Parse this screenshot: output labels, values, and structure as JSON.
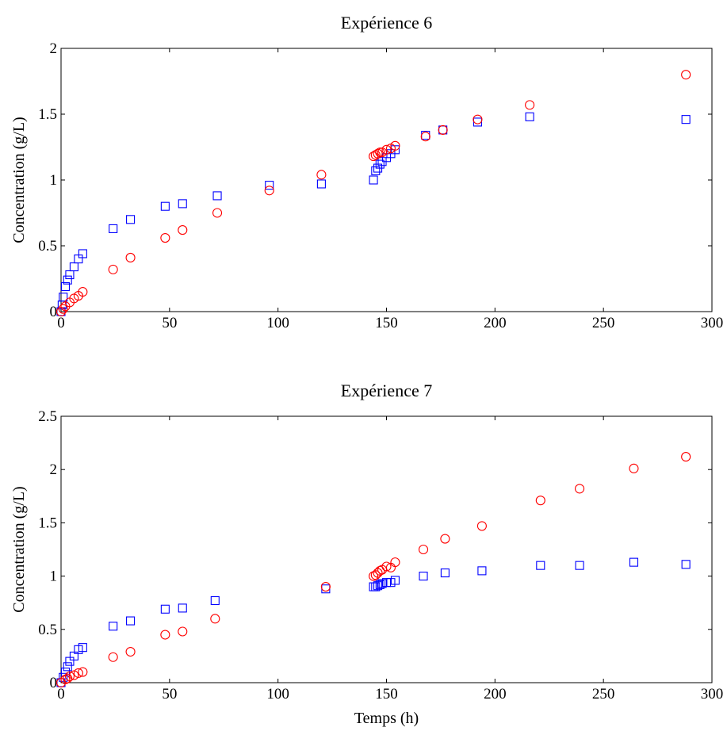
{
  "chart_data": [
    {
      "type": "scatter",
      "title": "Expérience 6",
      "xlabel": "",
      "ylabel": "Concentration (g/L)",
      "xlim": [
        0,
        300
      ],
      "ylim": [
        0,
        2
      ],
      "xticks": [
        "0",
        "50",
        "100",
        "150",
        "200",
        "250",
        "300"
      ],
      "yticks": [
        "0",
        "0.5",
        "1",
        "1.5",
        "2"
      ],
      "grid": false,
      "series": [
        {
          "marker": "square",
          "color": "#0000ff",
          "x": [
            0,
            0.5,
            1,
            2,
            3,
            4,
            6,
            8,
            10,
            24,
            32,
            48,
            56,
            72,
            96,
            120,
            144,
            145,
            146,
            147,
            148,
            150,
            152,
            154,
            168,
            176,
            192,
            216,
            288
          ],
          "y": [
            0,
            0.05,
            0.11,
            0.19,
            0.24,
            0.28,
            0.34,
            0.4,
            0.44,
            0.63,
            0.7,
            0.8,
            0.82,
            0.88,
            0.96,
            0.97,
            1.0,
            1.07,
            1.09,
            1.12,
            1.14,
            1.17,
            1.2,
            1.23,
            1.34,
            1.38,
            1.44,
            1.48,
            1.46
          ]
        },
        {
          "marker": "circle",
          "color": "#ff0000",
          "x": [
            0,
            1,
            2,
            4,
            6,
            8,
            10,
            24,
            32,
            48,
            56,
            72,
            96,
            120,
            144,
            145,
            146,
            147,
            148,
            150,
            152,
            154,
            168,
            176,
            192,
            216,
            288
          ],
          "y": [
            0,
            0.02,
            0.04,
            0.07,
            0.1,
            0.12,
            0.15,
            0.32,
            0.41,
            0.56,
            0.62,
            0.75,
            0.92,
            1.04,
            1.18,
            1.19,
            1.2,
            1.21,
            1.21,
            1.23,
            1.24,
            1.26,
            1.33,
            1.38,
            1.46,
            1.57,
            1.8
          ]
        }
      ]
    },
    {
      "type": "scatter",
      "title": "Expérience 7",
      "xlabel": "Temps (h)",
      "ylabel": "Concentration (g/L)",
      "xlim": [
        0,
        300
      ],
      "ylim": [
        0,
        2.5
      ],
      "xticks": [
        "0",
        "50",
        "100",
        "150",
        "200",
        "250",
        "300"
      ],
      "yticks": [
        "0",
        "0.5",
        "1",
        "1.5",
        "2",
        "2.5"
      ],
      "grid": false,
      "series": [
        {
          "marker": "square",
          "color": "#0000ff",
          "x": [
            0,
            1,
            2,
            3,
            4,
            6,
            8,
            10,
            24,
            32,
            48,
            56,
            71,
            122,
            144,
            145,
            146,
            147,
            148,
            150,
            152,
            154,
            167,
            177,
            194,
            221,
            239,
            264,
            288
          ],
          "y": [
            0,
            0.05,
            0.1,
            0.15,
            0.2,
            0.25,
            0.31,
            0.33,
            0.53,
            0.58,
            0.69,
            0.7,
            0.77,
            0.88,
            0.9,
            0.9,
            0.91,
            0.92,
            0.93,
            0.94,
            0.94,
            0.96,
            1.0,
            1.03,
            1.05,
            1.1,
            1.1,
            1.13,
            1.11
          ]
        },
        {
          "marker": "circle",
          "color": "#ff0000",
          "x": [
            0,
            2,
            3,
            4,
            6,
            8,
            10,
            24,
            32,
            48,
            56,
            71,
            122,
            144,
            145,
            146,
            147,
            148,
            150,
            152,
            154,
            167,
            177,
            194,
            221,
            239,
            264,
            288
          ],
          "y": [
            0,
            0.03,
            0.04,
            0.06,
            0.07,
            0.09,
            0.1,
            0.24,
            0.29,
            0.45,
            0.48,
            0.6,
            0.9,
            1.0,
            1.01,
            1.03,
            1.05,
            1.06,
            1.09,
            1.08,
            1.13,
            1.25,
            1.35,
            1.47,
            1.71,
            1.82,
            2.01,
            2.12
          ]
        }
      ]
    }
  ]
}
